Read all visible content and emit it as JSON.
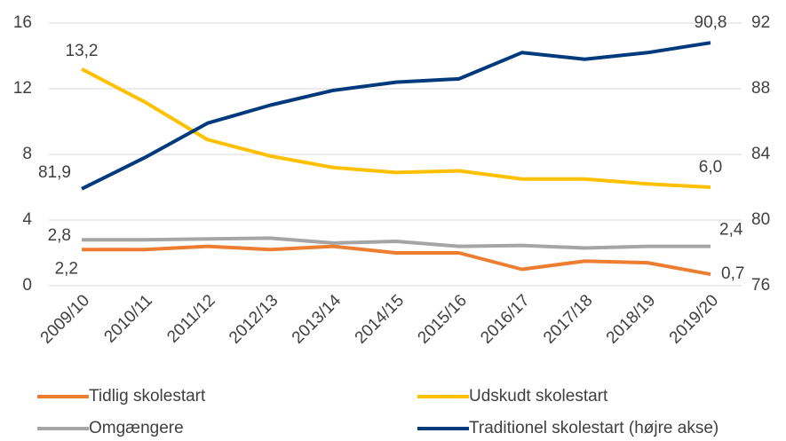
{
  "chart_data": {
    "type": "line",
    "categories": [
      "2009/10",
      "2010/11",
      "2011/12",
      "2012/13",
      "2013/14",
      "2014/15",
      "2015/16",
      "2016/17",
      "2017/18",
      "2018/19",
      "2019/20"
    ],
    "series": [
      {
        "name": "Tidlig skolestart",
        "color": "#ED7D31",
        "values": [
          2.2,
          2.2,
          2.4,
          2.2,
          2.4,
          2.0,
          2.0,
          1.0,
          1.5,
          1.4,
          0.7
        ],
        "value_labels": [
          "2,2",
          null,
          null,
          null,
          null,
          null,
          null,
          null,
          null,
          null,
          "0,7"
        ]
      },
      {
        "name": "Udskudt skolestart",
        "color": "#FFC000",
        "values": [
          13.2,
          11.2,
          8.9,
          7.9,
          7.2,
          6.9,
          7.0,
          6.5,
          6.5,
          6.2,
          6.0
        ],
        "value_labels": [
          "13,2",
          null,
          null,
          null,
          null,
          null,
          null,
          null,
          null,
          null,
          "6,0"
        ]
      },
      {
        "name": "Omgængere",
        "color": "#A5A5A5",
        "values": [
          2.8,
          2.8,
          2.85,
          2.9,
          2.6,
          2.7,
          2.4,
          2.45,
          2.3,
          2.4,
          2.4
        ],
        "value_labels": [
          "2,8",
          null,
          null,
          null,
          null,
          null,
          null,
          null,
          null,
          null,
          "2,4"
        ]
      },
      {
        "name": "Traditionel skolestart (højre akse)",
        "color": "#003A7D",
        "axis": "y2",
        "values": [
          81.9,
          83.8,
          85.9,
          87.0,
          87.9,
          88.4,
          88.6,
          90.2,
          89.8,
          90.2,
          90.8
        ],
        "value_labels": [
          "81,9",
          null,
          null,
          null,
          null,
          null,
          null,
          null,
          null,
          null,
          "90,8"
        ]
      }
    ],
    "ylim": [
      0,
      16
    ],
    "yticks": [
      0,
      4,
      8,
      12,
      16
    ],
    "y2lim": [
      76,
      92
    ],
    "y2ticks": [
      76,
      80,
      84,
      88,
      92
    ],
    "grid": true,
    "legend": "bottom"
  }
}
